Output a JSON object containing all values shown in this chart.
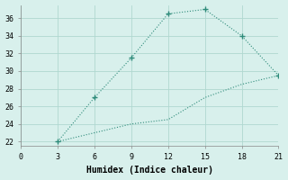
{
  "line1_x": [
    3,
    6,
    9,
    12,
    15,
    18,
    21
  ],
  "line1_y": [
    22,
    27,
    31.5,
    36.5,
    37,
    34,
    29.5
  ],
  "line2_x": [
    3,
    6,
    9,
    12,
    15,
    18,
    21
  ],
  "line2_y": [
    22,
    23,
    24,
    24.5,
    27,
    28.5,
    29.5
  ],
  "line_color": "#2e8b7a",
  "markersize": 3,
  "xlabel": "Humidex (Indice chaleur)",
  "xlim": [
    0,
    21
  ],
  "ylim": [
    21.5,
    37.5
  ],
  "xticks": [
    0,
    3,
    6,
    9,
    12,
    15,
    18,
    21
  ],
  "yticks": [
    22,
    24,
    26,
    28,
    30,
    32,
    34,
    36
  ],
  "background_color": "#d8f0ec",
  "grid_color": "#b0d8d0",
  "tick_fontsize": 6,
  "xlabel_fontsize": 7
}
